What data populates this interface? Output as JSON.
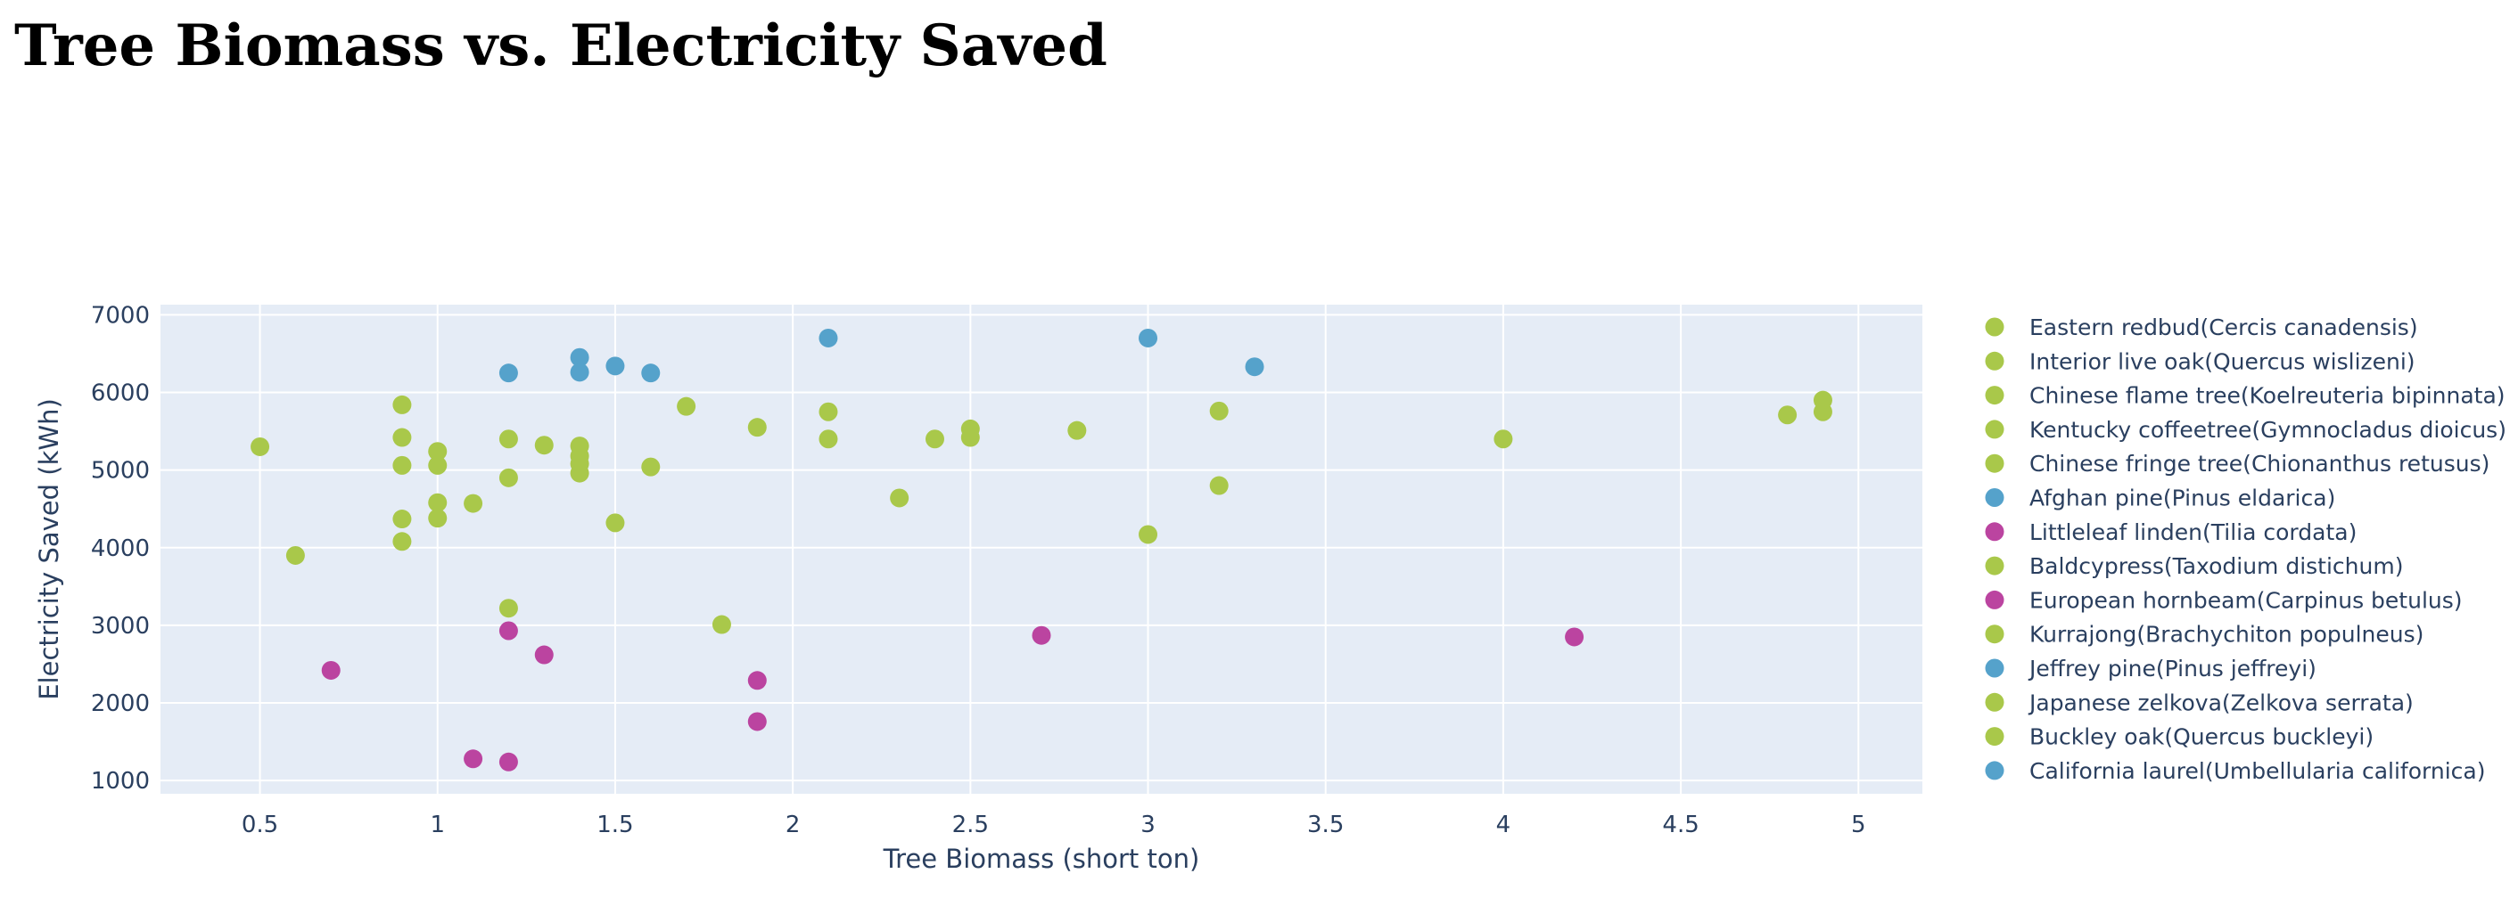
{
  "page": {
    "title": "Tree Biomass vs. Electricity Saved"
  },
  "chart_data": {
    "type": "scatter",
    "title": "Tree Biomass vs. Electricity Saved",
    "xlabel": "Tree Biomass (short ton)",
    "ylabel": "Electricity Saved (kWh)",
    "xlim": [
      0.22,
      5.18
    ],
    "ylim": [
      830,
      7130
    ],
    "x_ticks": [
      0.5,
      1,
      1.5,
      2,
      2.5,
      3,
      3.5,
      4,
      4.5,
      5
    ],
    "x_tick_labels": [
      "0.5",
      "1",
      "1.5",
      "2",
      "2.5",
      "3",
      "3.5",
      "4",
      "4.5",
      "5"
    ],
    "y_ticks": [
      1000,
      2000,
      3000,
      4000,
      5000,
      6000,
      7000
    ],
    "y_tick_labels": [
      "1000",
      "2000",
      "3000",
      "4000",
      "5000",
      "6000",
      "7000"
    ],
    "grid": true,
    "legend_position": "right",
    "colors": {
      "green": "#a9c84a",
      "blue": "#55a2cb",
      "magenta": "#bb44a0",
      "plot_bg": "#e5ecf6",
      "grid": "#ffffff",
      "text": "#2a3f5f"
    },
    "series": [
      {
        "name": "Eastern redbud(Cercis canadensis)",
        "color": "#a9c84a",
        "points": [
          [
            0.5,
            5300
          ],
          [
            0.6,
            3900
          ],
          [
            0.9,
            4370
          ],
          [
            0.9,
            4080
          ],
          [
            1.0,
            4580
          ],
          [
            1.0,
            4380
          ],
          [
            1.1,
            4570
          ]
        ]
      },
      {
        "name": "Interior live oak(Quercus wislizeni)",
        "color": "#a9c84a",
        "points": [
          [
            1.2,
            4900
          ],
          [
            1.3,
            5320
          ],
          [
            1.4,
            5310
          ],
          [
            1.4,
            5180
          ],
          [
            1.4,
            5080
          ],
          [
            1.5,
            4320
          ],
          [
            1.6,
            5040
          ]
        ]
      },
      {
        "name": "Chinese flame tree(Koelreuteria bipinnata)",
        "color": "#a9c84a",
        "points": [
          [
            0.9,
            5840
          ],
          [
            0.9,
            5420
          ],
          [
            0.9,
            5060
          ],
          [
            1.0,
            5240
          ],
          [
            1.0,
            5060
          ],
          [
            1.2,
            5400
          ]
        ]
      },
      {
        "name": "Kentucky coffeetree(Gymnocladus dioicus)",
        "color": "#a9c84a",
        "points": [
          [
            1.7,
            5820
          ],
          [
            1.9,
            5550
          ],
          [
            2.1,
            5750
          ],
          [
            2.1,
            5400
          ]
        ]
      },
      {
        "name": "Chinese fringe tree(Chionanthus retusus)",
        "color": "#a9c84a",
        "points": [
          [
            2.3,
            4640
          ],
          [
            2.4,
            5400
          ],
          [
            2.5,
            5530
          ],
          [
            2.5,
            5420
          ]
        ]
      },
      {
        "name": "Afghan pine(Pinus eldarica)",
        "color": "#55a2cb",
        "points": [
          [
            1.2,
            6250
          ],
          [
            1.4,
            6450
          ],
          [
            1.4,
            6260
          ],
          [
            1.5,
            6340
          ],
          [
            1.6,
            6250
          ]
        ]
      },
      {
        "name": "Littleleaf linden(Tilia cordata)",
        "color": "#bb44a0",
        "points": [
          [
            0.7,
            2420
          ],
          [
            1.2,
            2930
          ],
          [
            1.3,
            2620
          ]
        ]
      },
      {
        "name": "Baldcypress(Taxodium distichum)",
        "color": "#a9c84a",
        "points": [
          [
            2.8,
            5510
          ],
          [
            3.2,
            5760
          ],
          [
            3.2,
            4800
          ],
          [
            3.0,
            4170
          ]
        ]
      },
      {
        "name": "European hornbeam(Carpinus betulus)",
        "color": "#bb44a0",
        "points": [
          [
            1.1,
            1280
          ],
          [
            1.2,
            1240
          ],
          [
            1.9,
            2290
          ],
          [
            1.9,
            1760
          ]
        ]
      },
      {
        "name": "Kurrajong(Brachychiton populneus)",
        "color": "#a9c84a",
        "points": [
          [
            1.2,
            3220
          ],
          [
            1.8,
            3010
          ],
          [
            1.4,
            4960
          ]
        ]
      },
      {
        "name": "Jeffrey pine(Pinus jeffreyi)",
        "color": "#55a2cb",
        "points": [
          [
            2.1,
            6700
          ],
          [
            3.0,
            6700
          ],
          [
            3.3,
            6330
          ]
        ]
      },
      {
        "name": "Japanese zelkova(Zelkova serrata)",
        "color": "#a9c84a",
        "points": [
          [
            4.0,
            5400
          ],
          [
            4.8,
            5710
          ]
        ]
      },
      {
        "name": "Buckley oak(Quercus buckleyi)",
        "color": "#a9c84a",
        "points": [
          [
            4.9,
            5900
          ],
          [
            4.9,
            5750
          ]
        ]
      },
      {
        "name": "California laurel(Umbellularia californica)",
        "color": "#55a2cb",
        "points": []
      },
      {
        "name": "",
        "color": "#bb44a0",
        "points": [
          [
            2.7,
            2870
          ],
          [
            4.2,
            2850
          ]
        ]
      }
    ]
  }
}
